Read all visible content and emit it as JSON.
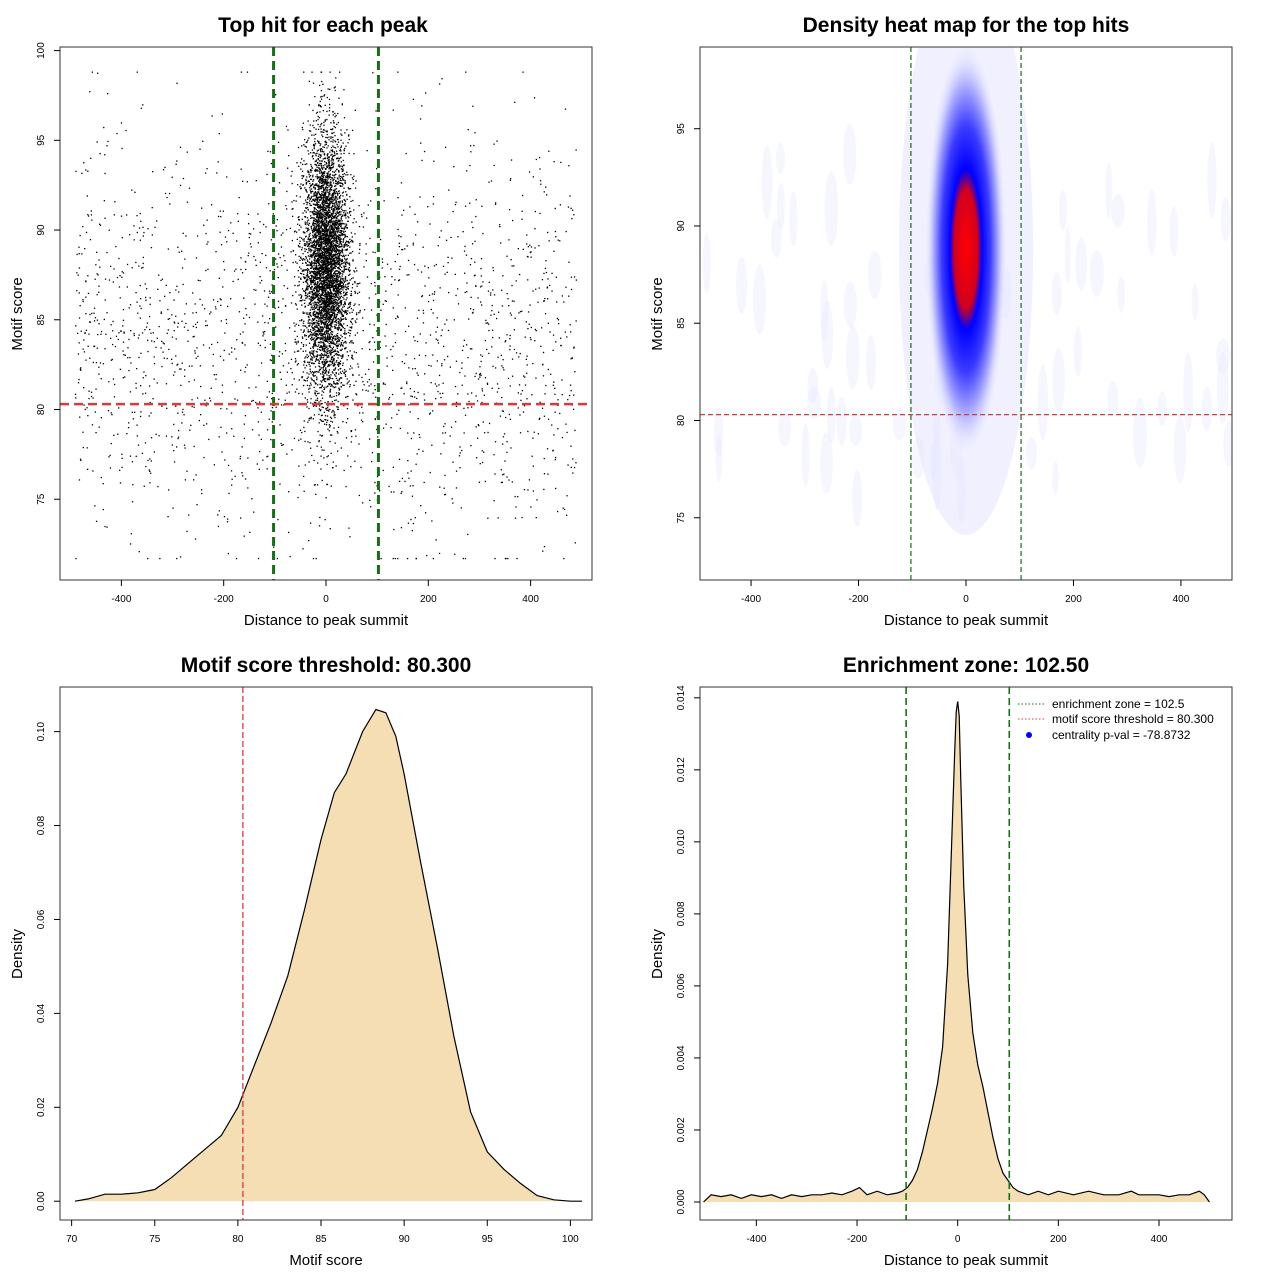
{
  "chart_data": [
    {
      "type": "scatter",
      "title": "Top hit for each peak",
      "xlabel": "Distance to peak summit",
      "ylabel": "Motif score",
      "xlim": [
        -520,
        520
      ],
      "ylim": [
        70.5,
        100.2
      ],
      "xticks": [
        -400,
        -200,
        0,
        200,
        400
      ],
      "yticks": [
        75,
        80,
        85,
        90,
        95,
        100
      ],
      "vlines": [
        -102.5,
        102.5
      ],
      "hline": 80.3,
      "vline_color": "#1a6b1a",
      "hline_color": "#d93a3a",
      "points": {
        "n_total": 7000,
        "central_fraction": 0.72,
        "central_x_sd": 22,
        "central_y_mean": 88,
        "central_y_sd": 3.6,
        "background_x_range": [
          -490,
          490
        ],
        "background_y_mean": 84,
        "background_y_sd": 5.5,
        "y_range": [
          71.7,
          98.8
        ],
        "color": "#000000"
      }
    },
    {
      "type": "heatmap",
      "title": "Density heat map for the top hits",
      "xlabel": "Distance to peak summit",
      "ylabel": "Motif score",
      "xlim": [
        -495,
        495
      ],
      "ylim": [
        71.8,
        99.2
      ],
      "xticks": [
        -400,
        -200,
        0,
        200,
        400
      ],
      "yticks": [
        75,
        80,
        85,
        90,
        95
      ],
      "vlines": [
        -102.5,
        102.5
      ],
      "hline": 80.3,
      "peak": {
        "x": 0,
        "y": 88.8,
        "x_sd": 26,
        "y_sd": 3.4
      },
      "colors": [
        "#ffffff",
        "#0000ff",
        "#ff0000"
      ],
      "vline_color": "#1a6b1a",
      "hline_color": "#d93a3a"
    },
    {
      "type": "area",
      "title": "Motif score threshold: 80.300",
      "xlabel": "Motif score",
      "ylabel": "Density",
      "xlim": [
        69.3,
        101.3
      ],
      "ylim": [
        -0.004,
        0.1095
      ],
      "xticks": [
        70,
        75,
        80,
        85,
        90,
        95,
        100
      ],
      "yticks": [
        0.0,
        0.02,
        0.04,
        0.06,
        0.08,
        0.1
      ],
      "ytick_labels": [
        "0.00",
        "0.02",
        "0.04",
        "0.06",
        "0.08",
        "0.10"
      ],
      "vline": 80.3,
      "vline_color": "#d93a3a",
      "fill": "#f5deb3",
      "x": [
        70.2,
        71,
        72,
        73,
        74,
        75,
        76,
        77,
        78,
        79,
        80,
        81,
        82,
        83,
        84,
        85,
        85.8,
        86.5,
        87.5,
        88.3,
        88.9,
        89.5,
        90,
        91,
        92,
        93,
        94,
        95,
        96,
        97,
        98,
        99,
        100,
        100.7
      ],
      "y": [
        0.0,
        0.0005,
        0.0015,
        0.0015,
        0.0018,
        0.0025,
        0.005,
        0.008,
        0.011,
        0.014,
        0.02,
        0.029,
        0.038,
        0.048,
        0.062,
        0.077,
        0.087,
        0.091,
        0.1,
        0.1047,
        0.104,
        0.099,
        0.091,
        0.072,
        0.054,
        0.035,
        0.019,
        0.0105,
        0.0068,
        0.0038,
        0.0012,
        0.0003,
        0.0,
        0.0
      ]
    },
    {
      "type": "area",
      "title": "Enrichment zone: 102.50",
      "xlabel": "Distance to peak summit",
      "ylabel": "Density",
      "xlim": [
        -512,
        545
      ],
      "ylim": [
        -0.0005,
        0.0143
      ],
      "xticks": [
        -400,
        -200,
        0,
        200,
        400
      ],
      "yticks": [
        0.0,
        0.002,
        0.004,
        0.006,
        0.008,
        0.01,
        0.012,
        0.014
      ],
      "ytick_labels": [
        "0.000",
        "0.002",
        "0.004",
        "0.006",
        "0.008",
        "0.010",
        "0.012",
        "0.014"
      ],
      "vlines": [
        -102.5,
        102.5
      ],
      "vline_color": "#1a6b1a",
      "fill": "#f5deb3",
      "x": [
        -505,
        -490,
        -470,
        -450,
        -430,
        -410,
        -390,
        -370,
        -350,
        -330,
        -310,
        -290,
        -270,
        -250,
        -230,
        -210,
        -195,
        -180,
        -160,
        -140,
        -120,
        -110,
        -100,
        -90,
        -80,
        -70,
        -60,
        -50,
        -40,
        -30,
        -20,
        -12,
        -6,
        -3,
        0,
        3,
        6,
        12,
        20,
        30,
        40,
        50,
        60,
        70,
        80,
        90,
        100,
        110,
        120,
        140,
        160,
        180,
        200,
        230,
        260,
        290,
        320,
        345,
        360,
        380,
        400,
        420,
        440,
        460,
        480,
        490,
        500
      ],
      "y": [
        0.0,
        0.0002,
        0.00015,
        0.0002,
        0.0001,
        0.0002,
        0.00015,
        0.0002,
        0.0001,
        0.0002,
        0.00015,
        0.0002,
        0.0002,
        0.00025,
        0.0002,
        0.0003,
        0.0004,
        0.0002,
        0.0003,
        0.0002,
        0.00025,
        0.0003,
        0.0004,
        0.0006,
        0.0009,
        0.0014,
        0.002,
        0.0026,
        0.0033,
        0.0043,
        0.0066,
        0.01,
        0.0125,
        0.0136,
        0.0139,
        0.0135,
        0.0118,
        0.0088,
        0.0063,
        0.0047,
        0.0038,
        0.0032,
        0.0025,
        0.0018,
        0.0012,
        0.0008,
        0.0006,
        0.0004,
        0.0003,
        0.0002,
        0.0003,
        0.0002,
        0.0003,
        0.0002,
        0.0003,
        0.0002,
        0.0002,
        0.0003,
        0.0002,
        0.0002,
        0.0002,
        0.00015,
        0.0002,
        0.0002,
        0.0003,
        0.0002,
        0.0
      ],
      "legend": [
        {
          "label": "enrichment zone = 102.5",
          "kind": "dotted-line",
          "color": "#1a6b1a"
        },
        {
          "label": "motif score threshold = 80.300",
          "kind": "dotted-line",
          "color": "#d93a3a"
        },
        {
          "label": "centrality p-val = -78.8732",
          "kind": "point",
          "color": "#0000ff"
        }
      ]
    }
  ]
}
